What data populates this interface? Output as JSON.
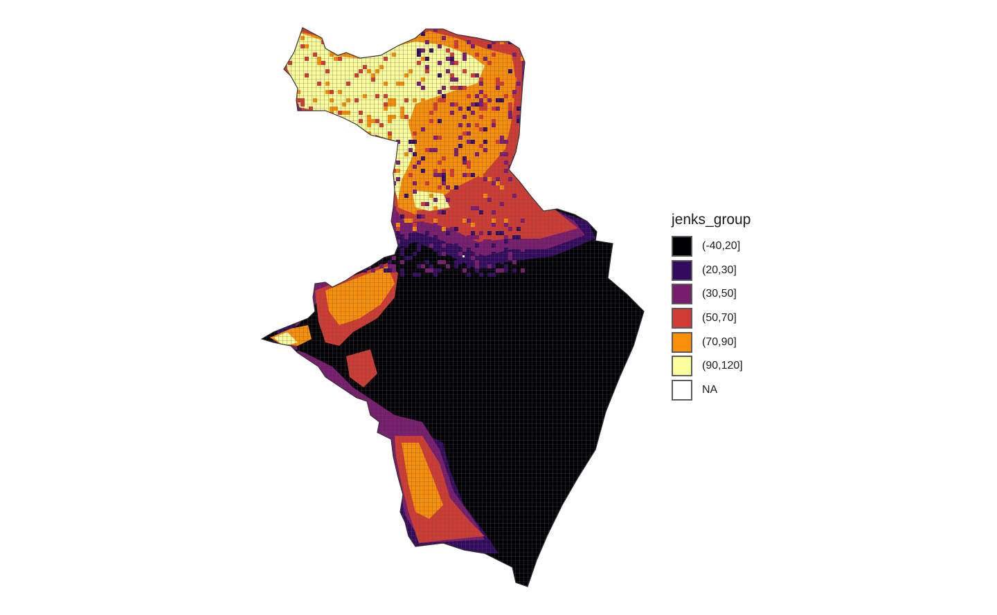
{
  "map": {
    "legend": {
      "title": "jenks_group",
      "items": [
        {
          "label": "(-40,20]",
          "color": "#000004"
        },
        {
          "label": "(20,30]",
          "color": "#320A5E"
        },
        {
          "label": "(30,50]",
          "color": "#781C6D"
        },
        {
          "label": "(50,70]",
          "color": "#D03C33"
        },
        {
          "label": "(70,90]",
          "color": "#F98E09"
        },
        {
          "label": "(90,120]",
          "color": "#FCFD9D"
        },
        {
          "label": "NA",
          "color": "#FFFFFF"
        }
      ]
    },
    "grid_line_color": "#555555",
    "outline_color": "#333333"
  }
}
